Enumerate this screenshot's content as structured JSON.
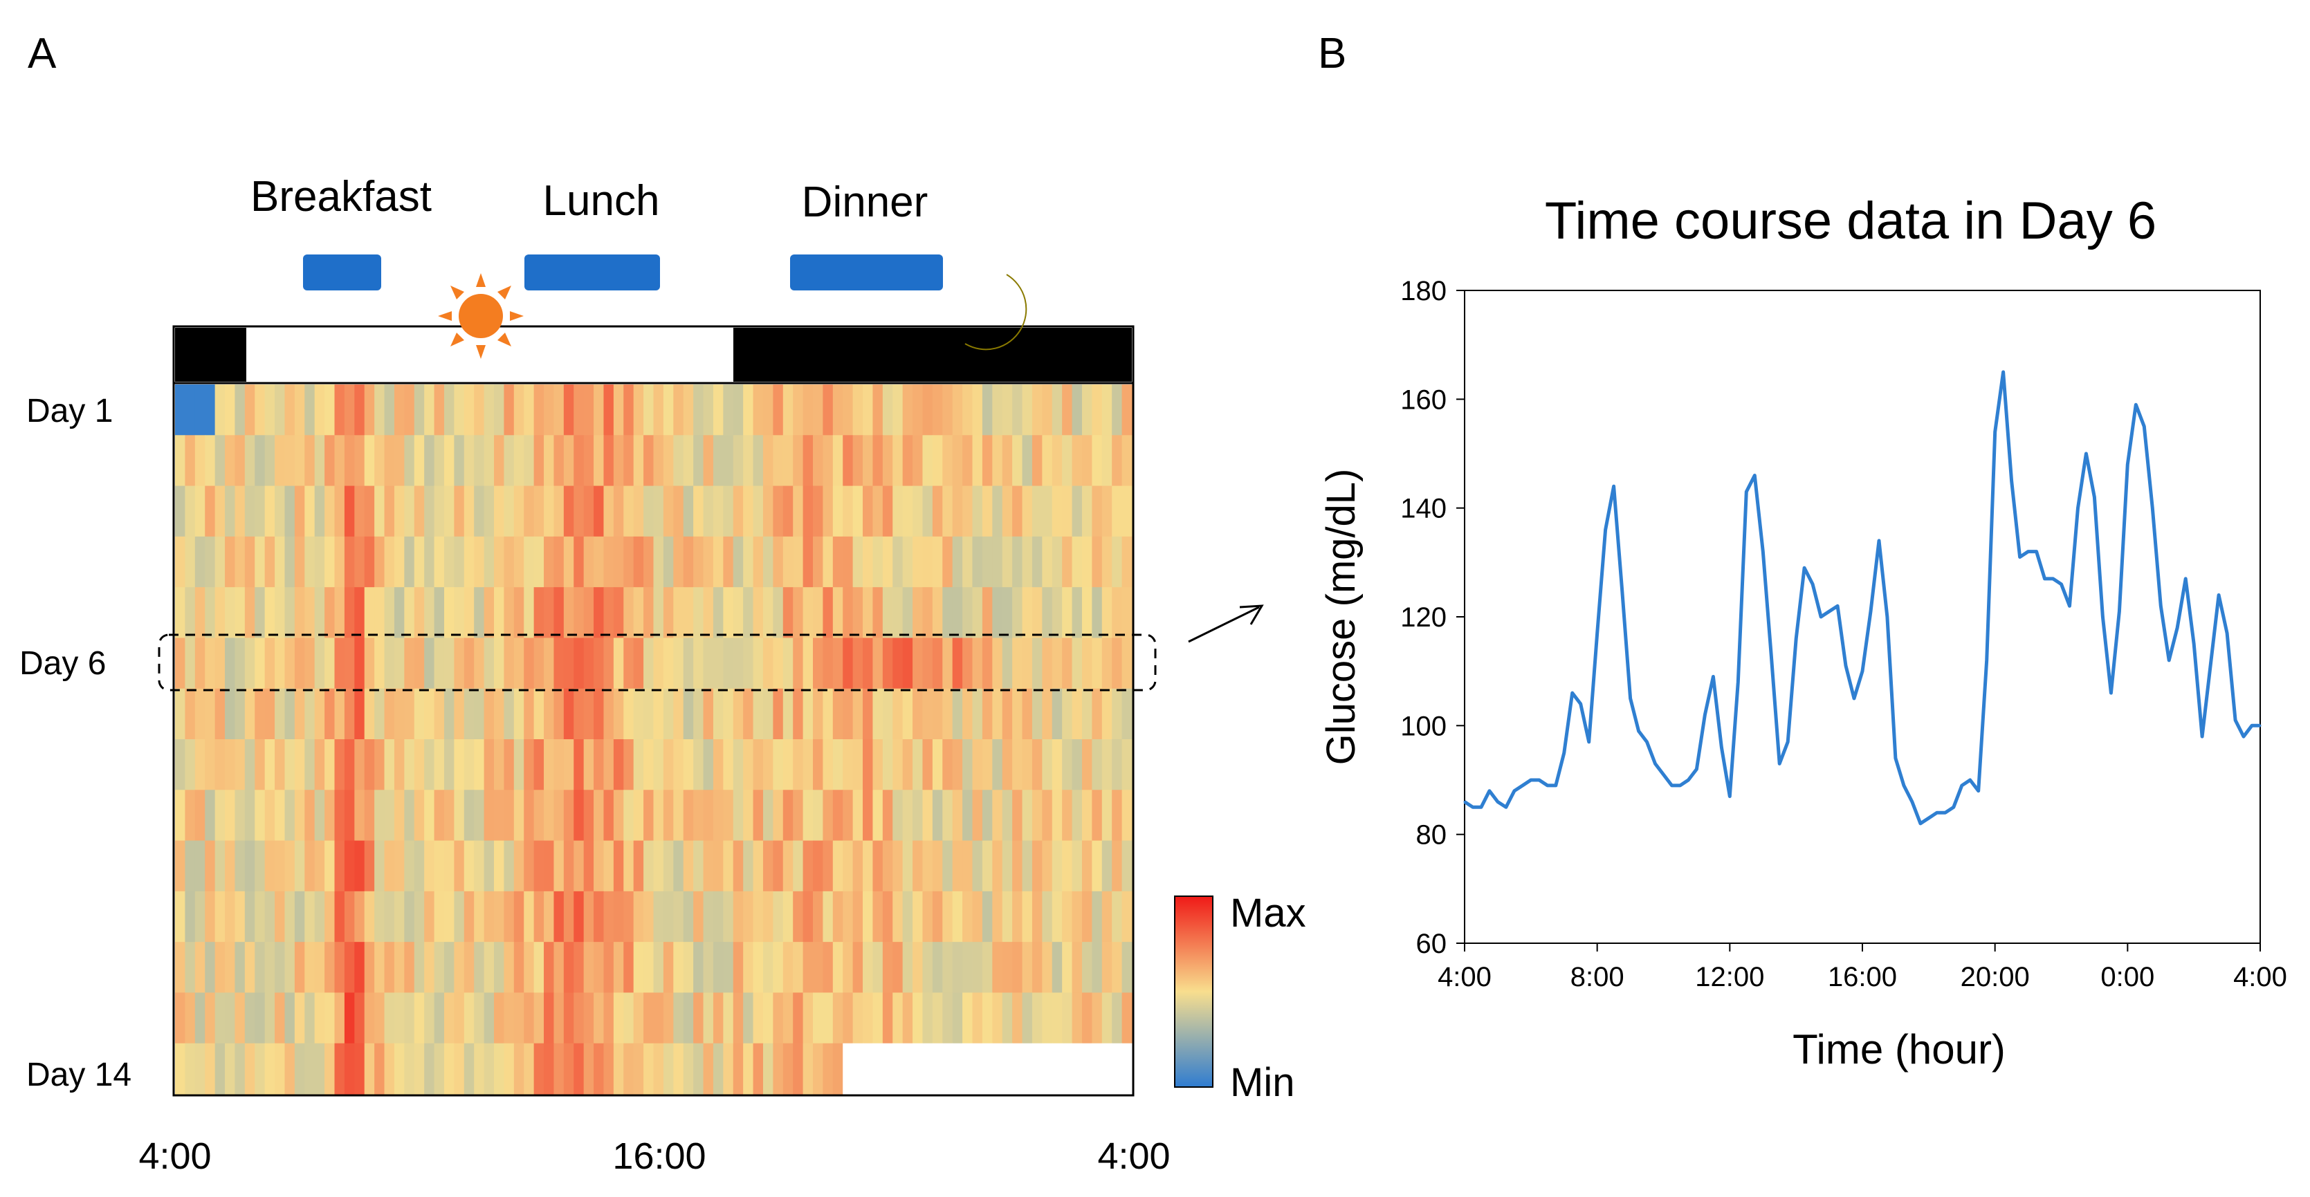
{
  "panel_a": {
    "label": "A",
    "meals": [
      "Breakfast",
      "Lunch",
      "Dinner"
    ],
    "day_labels": [
      "Day 1",
      "Day 6",
      "Day 14"
    ],
    "x_ticks": [
      "4:00",
      "16:00",
      "4:00"
    ],
    "legend": {
      "max": "Max",
      "min": "Min"
    },
    "sun_icon": "sun-icon",
    "moon_icon": "moon-icon"
  },
  "panel_b": {
    "label": "B"
  },
  "colors": {
    "line": "#2f7fd1",
    "meal_bar": "#1f6fc9",
    "sun": "#f47d20",
    "moon": "#f5e000",
    "night": "#000000",
    "scale_low": "#2f7cd0",
    "scale_mid": "#f8de8e",
    "scale_high": "#ef1a17"
  },
  "chart_data": [
    {
      "type": "heatmap",
      "title": "",
      "rows": 14,
      "columns": 96,
      "row_labels": [
        "Day 1",
        "Day 6",
        "Day 14"
      ],
      "x_ticks": [
        "4:00",
        "16:00",
        "4:00"
      ],
      "color_scale": [
        "Min",
        "Max"
      ],
      "highlighted_row": "Day 6",
      "meals": [
        "Breakfast",
        "Lunch",
        "Dinner"
      ]
    },
    {
      "type": "line",
      "title": "Time course data in Day 6",
      "xlabel": "Time (hour)",
      "ylabel": "Glucose (mg/dL)",
      "xlim": [
        0,
        24
      ],
      "ylim": [
        60,
        180
      ],
      "x_ticks": [
        "4:00",
        "8:00",
        "12:00",
        "16:00",
        "20:00",
        "0:00",
        "4:00"
      ],
      "y_ticks": [
        60,
        80,
        100,
        120,
        140,
        160,
        180
      ],
      "series": [
        {
          "name": "Glucose",
          "x": [
            0,
            0.25,
            0.5,
            0.75,
            1,
            1.25,
            1.5,
            1.75,
            2,
            2.25,
            2.5,
            2.75,
            3,
            3.25,
            3.5,
            3.75,
            4,
            4.25,
            4.5,
            4.75,
            5,
            5.25,
            5.5,
            5.75,
            6,
            6.25,
            6.5,
            6.75,
            7,
            7.25,
            7.5,
            7.75,
            8,
            8.25,
            8.5,
            8.75,
            9,
            9.25,
            9.5,
            9.75,
            10,
            10.25,
            10.5,
            10.75,
            11,
            11.25,
            11.5,
            11.75,
            12,
            12.25,
            12.5,
            12.75,
            13,
            13.25,
            13.5,
            13.75,
            14,
            14.25,
            14.5,
            14.75,
            15,
            15.25,
            15.5,
            15.75,
            16,
            16.25,
            16.5,
            16.75,
            17,
            17.25,
            17.5,
            17.75,
            18,
            18.25,
            18.5,
            18.75,
            19,
            19.25,
            19.5,
            19.75,
            20,
            20.25,
            20.5,
            20.75,
            21,
            21.25,
            21.5,
            21.75,
            22,
            22.25,
            22.5,
            22.75,
            23,
            23.25,
            23.5,
            23.75,
            24
          ],
          "values": [
            86,
            85,
            85,
            88,
            86,
            85,
            88,
            89,
            90,
            90,
            89,
            89,
            95,
            106,
            104,
            97,
            117,
            136,
            144,
            125,
            105,
            99,
            97,
            93,
            91,
            89,
            89,
            90,
            92,
            102,
            109,
            96,
            87,
            108,
            143,
            146,
            132,
            113,
            93,
            97,
            116,
            129,
            126,
            120,
            121,
            122,
            111,
            105,
            110,
            121,
            134,
            120,
            94,
            89,
            86,
            82,
            83,
            84,
            84,
            85,
            89,
            90,
            88,
            112,
            154,
            165,
            145,
            131,
            132,
            132,
            127,
            127,
            126,
            122,
            140,
            150,
            142,
            120,
            106,
            121,
            148,
            159,
            155,
            140,
            122,
            112,
            118,
            127,
            115,
            98,
            111,
            124,
            117,
            101,
            98,
            100,
            100
          ]
        }
      ]
    }
  ]
}
